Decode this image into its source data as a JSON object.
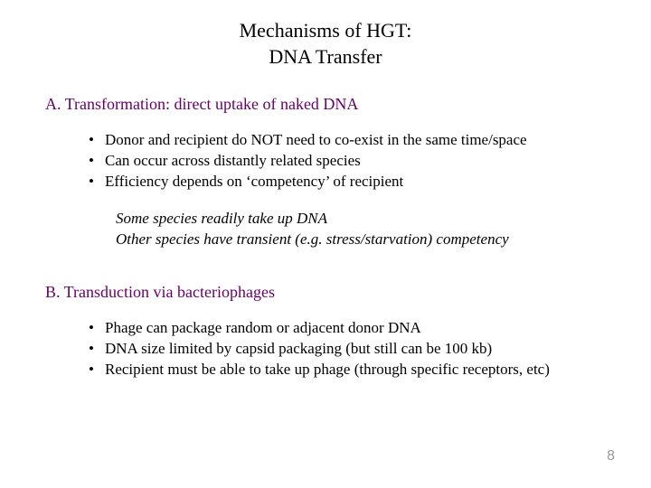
{
  "title_line1": "Mechanisms of HGT:",
  "title_line2": "DNA Transfer",
  "sectionA": {
    "heading": "A.  Transformation:  direct uptake of naked DNA",
    "bullets": [
      "Donor and recipient do NOT need to co-exist in the same time/space",
      "Can occur across distantly related species",
      "Efficiency depends on ‘competency’ of recipient"
    ],
    "note_line1": "Some species readily take up DNA",
    "note_line2": "Other species have transient (e.g. stress/starvation) competency"
  },
  "sectionB": {
    "heading": "B.  Transduction via bacteriophages",
    "bullets": [
      "Phage can package random or adjacent donor DNA",
      "DNA size limited by capsid packaging (but still can be 100 kb)",
      "Recipient must be able to take up phage (through specific receptors, etc)"
    ]
  },
  "page_number": "8",
  "colors": {
    "heading_color": "#660066",
    "text_color": "#000000",
    "page_num_color": "#999999",
    "background": "#ffffff"
  },
  "typography": {
    "title_fontsize": 22,
    "heading_fontsize": 18,
    "body_fontsize": 17,
    "pagenum_fontsize": 16,
    "font_family": "Times New Roman"
  }
}
